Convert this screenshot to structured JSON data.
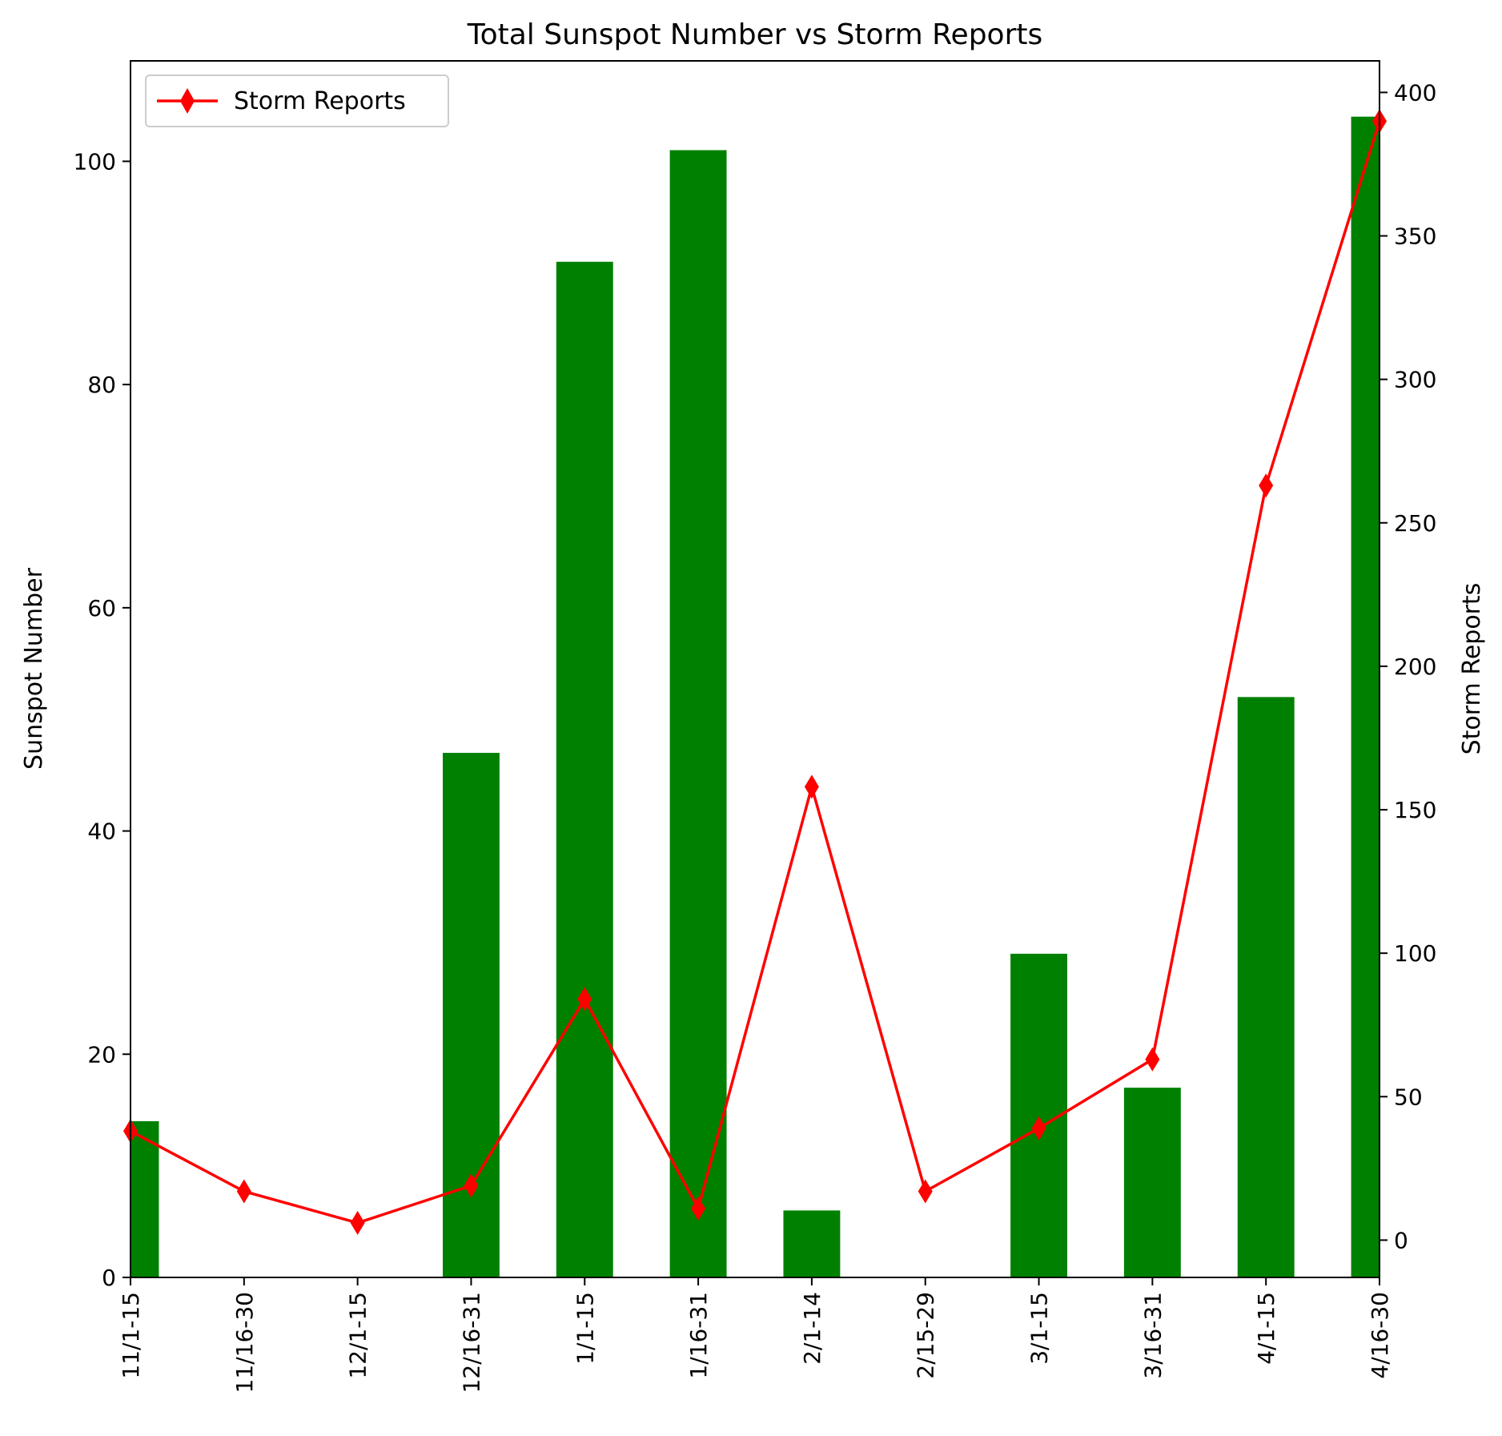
{
  "chart_data": {
    "type": "bar+line",
    "title": "Total Sunspot Number vs Storm Reports",
    "categories": [
      "11/1-15",
      "11/16-30",
      "12/1-15",
      "12/16-31",
      "1/1-15",
      "1/16-31",
      "2/1-14",
      "2/15-29",
      "3/1-15",
      "3/16-31",
      "4/1-15",
      "4/16-30"
    ],
    "bar_series": {
      "values": [
        14,
        0,
        0,
        47,
        91,
        101,
        6,
        0,
        29,
        17,
        52,
        104
      ],
      "color": "#008000",
      "axis": "left"
    },
    "line_series": {
      "name": "Storm Reports",
      "values": [
        38,
        17,
        6,
        19,
        84,
        11,
        158,
        17,
        39,
        63,
        263,
        390
      ],
      "color": "#ff0000",
      "marker": "thin-diamond",
      "axis": "right"
    },
    "y_left": {
      "label": "Sunspot Number",
      "lim": [
        0,
        109
      ],
      "ticks": [
        0,
        20,
        40,
        60,
        80,
        100
      ]
    },
    "y_right": {
      "label": "Storm Reports",
      "lim": [
        -13,
        411
      ],
      "ticks": [
        0,
        50,
        100,
        150,
        200,
        250,
        300,
        350,
        400
      ]
    },
    "legend": {
      "position": "top-left",
      "entries": [
        "Storm Reports"
      ]
    },
    "grid": false
  }
}
